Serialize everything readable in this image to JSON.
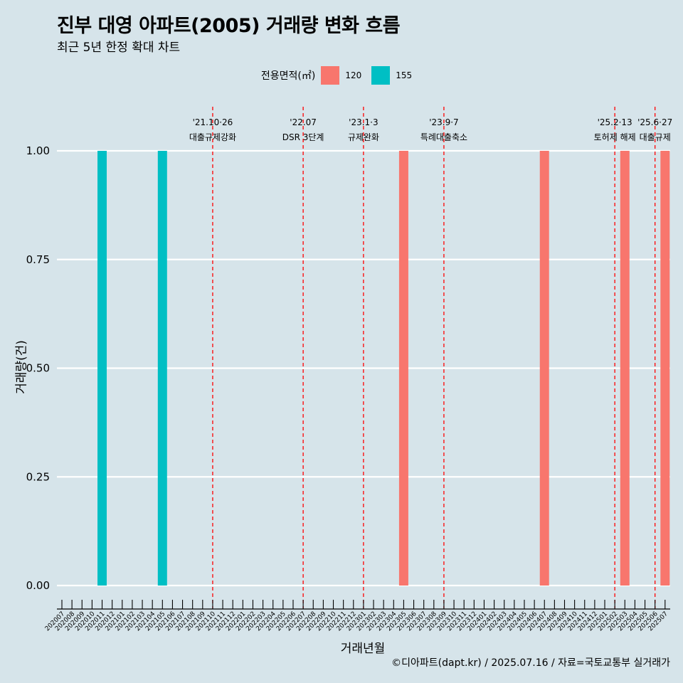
{
  "title": "진부 대영 아파트(2005) 거래량 변화 흐름",
  "subtitle": "최근 5년 한정 확대 차트",
  "caption": "©디아파트(dapt.kr) / 2025.07.16 / 자료=국토교통부 실거래가",
  "legend": {
    "title": "전용면적(㎡)",
    "items": [
      {
        "label": "120",
        "color": "#f8766d"
      },
      {
        "label": "155",
        "color": "#00bfc4"
      }
    ]
  },
  "chart_data": {
    "type": "bar",
    "xlabel": "거래년월",
    "ylabel": "거래량(건)",
    "ylim": [
      0,
      1
    ],
    "yticks": [
      "0.00",
      "0.25",
      "0.50",
      "0.75",
      "1.00"
    ],
    "categories": [
      "202007",
      "202008",
      "202009",
      "202010",
      "202011",
      "202012",
      "202101",
      "202102",
      "202103",
      "202104",
      "202105",
      "202106",
      "202107",
      "202108",
      "202109",
      "202110",
      "202111",
      "202112",
      "202201",
      "202202",
      "202203",
      "202204",
      "202205",
      "202206",
      "202207",
      "202208",
      "202209",
      "202210",
      "202211",
      "202212",
      "202301",
      "202302",
      "202303",
      "202304",
      "202305",
      "202306",
      "202307",
      "202308",
      "202309",
      "202310",
      "202311",
      "202312",
      "202401",
      "202402",
      "202403",
      "202404",
      "202405",
      "202406",
      "202407",
      "202408",
      "202409",
      "202410",
      "202411",
      "202412",
      "202501",
      "202502",
      "202503",
      "202504",
      "202505",
      "202506",
      "202507"
    ],
    "series": [
      {
        "name": "120",
        "color": "#f8766d",
        "points": [
          {
            "x": "202305",
            "y": 1
          },
          {
            "x": "202407",
            "y": 1
          },
          {
            "x": "202503",
            "y": 1
          },
          {
            "x": "202507",
            "y": 1
          }
        ]
      },
      {
        "name": "155",
        "color": "#00bfc4",
        "points": [
          {
            "x": "202011",
            "y": 1
          },
          {
            "x": "202105",
            "y": 1
          }
        ]
      }
    ],
    "annotations": [
      {
        "x": "202110",
        "date": "'21.10·26",
        "text": "대출규제강화"
      },
      {
        "x": "202207",
        "date": "'22.07",
        "text": "DSR 3단계"
      },
      {
        "x": "202301",
        "date": "'23.1·3",
        "text": "규제완화"
      },
      {
        "x": "202309",
        "date": "'23.9·7",
        "text": "특례대출축소"
      },
      {
        "x": "202502",
        "date": "'25.2·13",
        "text": "토허제 해제"
      },
      {
        "x": "202506",
        "date": "'25.6·27",
        "text": "대출규제"
      }
    ],
    "grid": true,
    "legend_position": "top"
  }
}
